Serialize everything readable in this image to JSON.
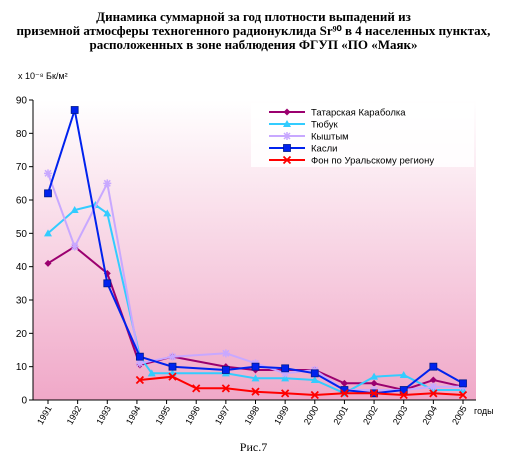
{
  "title_lines": [
    "Динамика суммарной за год плотности выпадений из",
    "приземной атмосферы техногенного радионуклида Sr⁹⁰ в 4 населенных пунктах,",
    "расположенных в зоне наблюдения ФГУП «ПО «Маяк»"
  ],
  "caption": "Рис.7",
  "chart_data": {
    "type": "line",
    "ylabel": "х 10⁻⁸ Бк/м²",
    "xlabel": "годы",
    "ylim": [
      0,
      90
    ],
    "yticks": [
      0,
      10,
      20,
      30,
      40,
      50,
      60,
      70,
      80,
      90
    ],
    "categories": [
      "1991",
      "1992",
      "1993",
      "1994",
      "1995",
      "1996",
      "1997",
      "1998",
      "1999",
      "2000",
      "2001",
      "2002",
      "2003",
      "2004",
      "2005"
    ],
    "grid": false,
    "legend_position": "top-right",
    "colors": {
      "plot_background_top": "#ffffff",
      "plot_background_bottom": "#f0a8c8"
    },
    "series": [
      {
        "name": "Татарская Караболка",
        "color": "#9b006f",
        "marker": "diamond",
        "points": [
          [
            1991.0,
            41
          ],
          [
            1991.9,
            46
          ],
          [
            1993.0,
            38
          ],
          [
            1994.1,
            10.5
          ],
          [
            1995.2,
            13
          ],
          [
            1997.0,
            10
          ],
          [
            1998.0,
            9
          ],
          [
            1999.0,
            9
          ],
          [
            2000.0,
            9
          ],
          [
            2001.0,
            5
          ],
          [
            2002.0,
            5
          ],
          [
            2003.0,
            3
          ],
          [
            2004.0,
            6
          ],
          [
            2005.0,
            4
          ]
        ]
      },
      {
        "name": "Тюбук",
        "color": "#33ccff",
        "marker": "triangle",
        "points": [
          [
            1991.0,
            50
          ],
          [
            1991.9,
            57
          ],
          [
            1992.6,
            58.5
          ],
          [
            1993.0,
            56
          ],
          [
            1994.1,
            13
          ],
          [
            1994.5,
            8
          ],
          [
            1995.2,
            8
          ],
          [
            1997.0,
            8
          ],
          [
            1998.0,
            6.5
          ],
          [
            1999.0,
            6.5
          ],
          [
            2000.0,
            6
          ],
          [
            2001.0,
            2
          ],
          [
            2002.0,
            7
          ],
          [
            2003.0,
            7.5
          ],
          [
            2004.0,
            3
          ],
          [
            2005.0,
            3
          ]
        ]
      },
      {
        "name": "Кыштым",
        "color": "#c8a8ff",
        "marker": "star",
        "points": [
          [
            1991.0,
            68
          ],
          [
            1991.9,
            46
          ],
          [
            1993.0,
            65
          ],
          [
            1994.1,
            11
          ],
          [
            1995.2,
            13
          ],
          [
            1997.0,
            14
          ],
          [
            1998.0,
            11
          ],
          [
            1999.0,
            8
          ],
          [
            2000.0,
            9
          ],
          [
            2001.0,
            3
          ],
          [
            2002.0,
            3
          ],
          [
            2003.0,
            3
          ],
          [
            2004.0,
            4
          ],
          [
            2005.0,
            4
          ]
        ]
      },
      {
        "name": "Касли",
        "color": "#0022ee",
        "marker": "square",
        "points": [
          [
            1991.0,
            62
          ],
          [
            1991.9,
            87
          ],
          [
            1993.0,
            35
          ],
          [
            1994.1,
            13
          ],
          [
            1995.2,
            10
          ],
          [
            1997.0,
            9
          ],
          [
            1998.0,
            10
          ],
          [
            1999.0,
            9.5
          ],
          [
            2000.0,
            8
          ],
          [
            2001.0,
            3
          ],
          [
            2002.0,
            2
          ],
          [
            2003.0,
            3
          ],
          [
            2004.0,
            10
          ],
          [
            2005.0,
            5
          ]
        ]
      },
      {
        "name": "Фон по Уральскому региону",
        "color": "#ff0000",
        "marker": "x",
        "points": [
          [
            1994.1,
            6
          ],
          [
            1995.2,
            7
          ],
          [
            1996.0,
            3.5
          ],
          [
            1997.0,
            3.5
          ],
          [
            1998.0,
            2.5
          ],
          [
            1999.0,
            2
          ],
          [
            2000.0,
            1.5
          ],
          [
            2001.0,
            2
          ],
          [
            2002.0,
            2
          ],
          [
            2003.0,
            1.5
          ],
          [
            2004.0,
            2
          ],
          [
            2005.0,
            1.5
          ]
        ]
      }
    ]
  }
}
